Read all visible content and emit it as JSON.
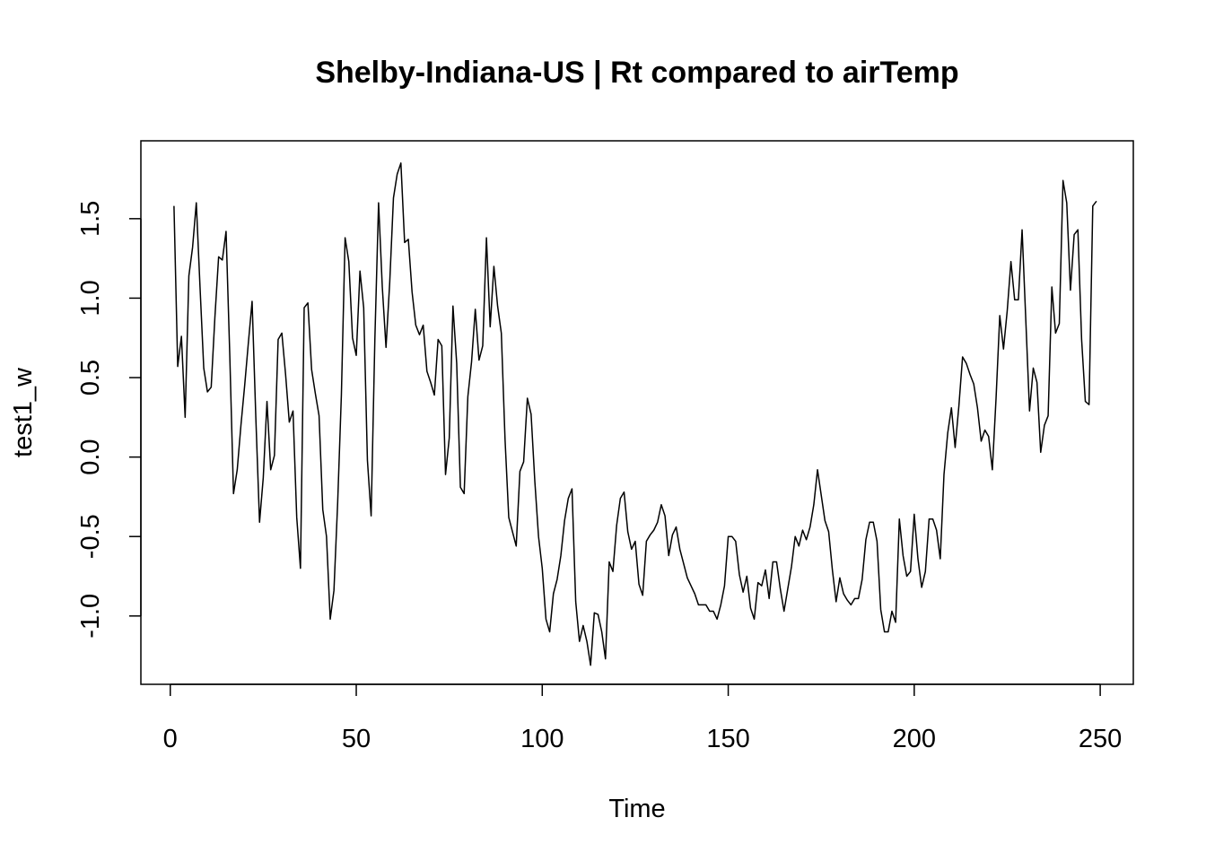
{
  "chart_data": {
    "type": "line",
    "title": "Shelby-Indiana-US | Rt compared to airTemp",
    "xlabel": "Time",
    "ylabel": "test1_w",
    "xlim": [
      -7.9,
      258.9
    ],
    "ylim": [
      -1.43,
      1.99
    ],
    "x_ticks": [
      0,
      50,
      100,
      150,
      200,
      250
    ],
    "y_ticks": [
      -1.0,
      -0.5,
      0.0,
      0.5,
      1.0,
      1.5
    ],
    "x_tick_labels": [
      "0",
      "50",
      "100",
      "150",
      "200",
      "250"
    ],
    "y_tick_labels": [
      "-1.0",
      "-0.5",
      "0.0",
      "0.5",
      "1.0",
      "1.5"
    ],
    "grid": false,
    "legend": "none",
    "line_color": "#000000",
    "series": [
      {
        "x_start": 1,
        "x_step": 1,
        "values": [
          1.58,
          0.57,
          0.76,
          0.25,
          1.14,
          1.32,
          1.6,
          1.07,
          0.56,
          0.41,
          0.44,
          0.88,
          1.26,
          1.24,
          1.42,
          0.64,
          -0.23,
          -0.08,
          0.2,
          0.45,
          0.72,
          0.98,
          0.25,
          -0.41,
          -0.13,
          0.35,
          -0.08,
          0.01,
          0.74,
          0.78,
          0.52,
          0.22,
          0.29,
          -0.38,
          -0.7,
          0.94,
          0.97,
          0.55,
          0.4,
          0.26,
          -0.33,
          -0.5,
          -1.02,
          -0.84,
          -0.29,
          0.39,
          1.38,
          1.23,
          0.75,
          0.64,
          1.17,
          0.94,
          -0.02,
          -0.37,
          0.74,
          1.6,
          1.07,
          0.69,
          1.1,
          1.63,
          1.78,
          1.85,
          1.35,
          1.37,
          1.04,
          0.83,
          0.77,
          0.83,
          0.54,
          0.47,
          0.39,
          0.74,
          0.7,
          -0.11,
          0.12,
          0.95,
          0.59,
          -0.19,
          -0.23,
          0.38,
          0.6,
          0.93,
          0.61,
          0.7,
          1.38,
          0.82,
          1.2,
          0.95,
          0.78,
          0.11,
          -0.38,
          -0.47,
          -0.56,
          -0.09,
          -0.03,
          0.37,
          0.27,
          -0.15,
          -0.5,
          -0.7,
          -1.02,
          -1.1,
          -0.86,
          -0.77,
          -0.62,
          -0.4,
          -0.26,
          -0.2,
          -0.91,
          -1.16,
          -1.06,
          -1.16,
          -1.31,
          -0.98,
          -0.99,
          -1.1,
          -1.27,
          -0.66,
          -0.72,
          -0.43,
          -0.26,
          -0.22,
          -0.47,
          -0.58,
          -0.53,
          -0.8,
          -0.87,
          -0.53,
          -0.49,
          -0.46,
          -0.41,
          -0.3,
          -0.37,
          -0.62,
          -0.49,
          -0.44,
          -0.58,
          -0.67,
          -0.76,
          -0.81,
          -0.86,
          -0.93,
          -0.93,
          -0.93,
          -0.97,
          -0.97,
          -1.02,
          -0.93,
          -0.81,
          -0.5,
          -0.5,
          -0.53,
          -0.74,
          -0.85,
          -0.75,
          -0.95,
          -1.02,
          -0.79,
          -0.81,
          -0.71,
          -0.89,
          -0.66,
          -0.66,
          -0.83,
          -0.97,
          -0.83,
          -0.69,
          -0.5,
          -0.56,
          -0.46,
          -0.52,
          -0.44,
          -0.3,
          -0.08,
          -0.24,
          -0.4,
          -0.47,
          -0.71,
          -0.91,
          -0.76,
          -0.86,
          -0.9,
          -0.93,
          -0.89,
          -0.89,
          -0.77,
          -0.52,
          -0.41,
          -0.41,
          -0.53,
          -0.96,
          -1.1,
          -1.1,
          -0.97,
          -1.04,
          -0.39,
          -0.62,
          -0.75,
          -0.72,
          -0.36,
          -0.64,
          -0.82,
          -0.72,
          -0.39,
          -0.39,
          -0.46,
          -0.64,
          -0.11,
          0.15,
          0.31,
          0.06,
          0.32,
          0.63,
          0.59,
          0.52,
          0.46,
          0.31,
          0.1,
          0.17,
          0.13,
          -0.08,
          0.37,
          0.89,
          0.68,
          0.92,
          1.23,
          0.99,
          0.99,
          1.43,
          0.86,
          0.29,
          0.56,
          0.47,
          0.03,
          0.2,
          0.26,
          1.07,
          0.78,
          0.84,
          1.74,
          1.6,
          1.05,
          1.4,
          1.43,
          0.74,
          0.35,
          0.33,
          1.58,
          1.61
        ]
      }
    ]
  }
}
